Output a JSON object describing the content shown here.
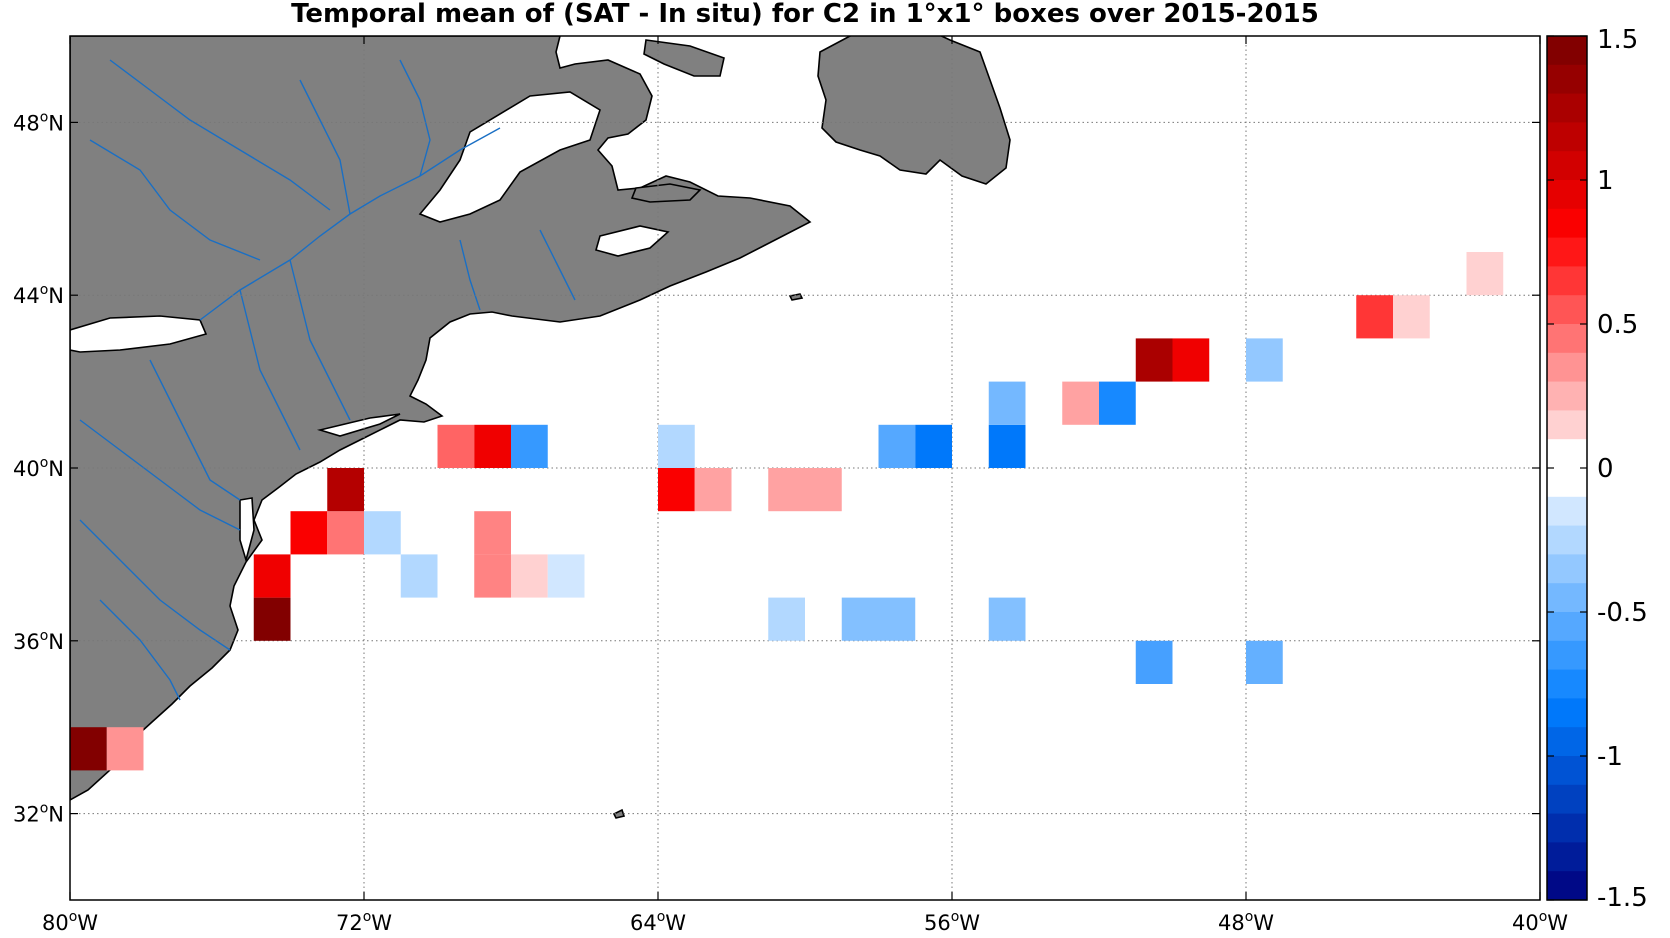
{
  "title": "Temporal mean of (SAT - In situ) for C2 in 1°x1° boxes over 2015-2015",
  "colors": {
    "land": "#808080",
    "coast": "#000000",
    "rivers": "#1a6fc4",
    "grid": "#777777",
    "frame": "#000000"
  },
  "axes": {
    "lon_range": [
      -80,
      -40
    ],
    "lat_range": [
      30,
      50
    ],
    "x_ticks": [
      {
        "value": -80,
        "num": "80",
        "suffix": "W"
      },
      {
        "value": -72,
        "num": "72",
        "suffix": "W"
      },
      {
        "value": -64,
        "num": "64",
        "suffix": "W"
      },
      {
        "value": -56,
        "num": "56",
        "suffix": "W"
      },
      {
        "value": -48,
        "num": "48",
        "suffix": "W"
      },
      {
        "value": -40,
        "num": "40",
        "suffix": "W"
      }
    ],
    "y_ticks": [
      {
        "value": 48,
        "num": "48",
        "suffix": "N"
      },
      {
        "value": 44,
        "num": "44",
        "suffix": "N"
      },
      {
        "value": 40,
        "num": "40",
        "suffix": "N"
      },
      {
        "value": 36,
        "num": "36",
        "suffix": "N"
      },
      {
        "value": 32,
        "num": "32",
        "suffix": "N"
      }
    ],
    "degree_symbol": "o",
    "grid": true
  },
  "chart_data": {
    "type": "heatmap",
    "cell_size_deg": 1,
    "cells": [
      {
        "lon": -79.5,
        "lat": 33.5,
        "value": 1.45
      },
      {
        "lon": -78.5,
        "lat": 33.5,
        "value": 0.35
      },
      {
        "lon": -74.5,
        "lat": 36.5,
        "value": 1.45
      },
      {
        "lon": -74.5,
        "lat": 37.5,
        "value": 0.9
      },
      {
        "lon": -73.5,
        "lat": 38.5,
        "value": 0.85
      },
      {
        "lon": -72.5,
        "lat": 38.5,
        "value": 0.45
      },
      {
        "lon": -72.5,
        "lat": 39.5,
        "value": 1.2
      },
      {
        "lon": -71.5,
        "lat": 38.5,
        "value": -0.25
      },
      {
        "lon": -70.5,
        "lat": 37.5,
        "value": -0.25
      },
      {
        "lon": -69.5,
        "lat": 40.5,
        "value": 0.5
      },
      {
        "lon": -68.5,
        "lat": 40.5,
        "value": 0.9
      },
      {
        "lon": -67.5,
        "lat": 40.5,
        "value": -0.65
      },
      {
        "lon": -68.5,
        "lat": 38.5,
        "value": 0.4
      },
      {
        "lon": -68.5,
        "lat": 37.5,
        "value": 0.4
      },
      {
        "lon": -67.5,
        "lat": 37.5,
        "value": 0.15
      },
      {
        "lon": -66.5,
        "lat": 37.5,
        "value": -0.15
      },
      {
        "lon": -63.5,
        "lat": 40.5,
        "value": -0.25
      },
      {
        "lon": -63.5,
        "lat": 39.5,
        "value": 0.85
      },
      {
        "lon": -62.5,
        "lat": 39.5,
        "value": 0.3
      },
      {
        "lon": -60.5,
        "lat": 39.5,
        "value": 0.3
      },
      {
        "lon": -59.5,
        "lat": 39.5,
        "value": 0.3
      },
      {
        "lon": -60.5,
        "lat": 36.5,
        "value": -0.25
      },
      {
        "lon": -58.5,
        "lat": 36.5,
        "value": -0.4
      },
      {
        "lon": -57.5,
        "lat": 36.5,
        "value": -0.4
      },
      {
        "lon": -57.5,
        "lat": 40.5,
        "value": -0.55
      },
      {
        "lon": -56.5,
        "lat": 40.5,
        "value": -0.85
      },
      {
        "lon": -54.5,
        "lat": 40.5,
        "value": -0.85
      },
      {
        "lon": -54.5,
        "lat": 41.5,
        "value": -0.45
      },
      {
        "lon": -54.5,
        "lat": 36.5,
        "value": -0.4
      },
      {
        "lon": -52.5,
        "lat": 41.5,
        "value": 0.3
      },
      {
        "lon": -51.5,
        "lat": 41.5,
        "value": -0.75
      },
      {
        "lon": -50.5,
        "lat": 42.5,
        "value": 1.25
      },
      {
        "lon": -49.5,
        "lat": 42.5,
        "value": 0.9
      },
      {
        "lon": -50.5,
        "lat": 35.5,
        "value": -0.6
      },
      {
        "lon": -47.5,
        "lat": 42.5,
        "value": -0.35
      },
      {
        "lon": -47.5,
        "lat": 35.5,
        "value": -0.5
      },
      {
        "lon": -44.5,
        "lat": 43.5,
        "value": 0.65
      },
      {
        "lon": -43.5,
        "lat": 43.5,
        "value": 0.15
      },
      {
        "lon": -41.5,
        "lat": 44.5,
        "value": 0.15
      }
    ],
    "colorbar": {
      "range": [
        -1.5,
        1.5
      ],
      "step": 0.1,
      "ticks": [
        "1.5",
        "1",
        "0.5",
        "0",
        "-0.5",
        "-1",
        "-1.5"
      ],
      "tick_values": [
        1.5,
        1,
        0.5,
        0,
        -0.5,
        -1,
        -1.5
      ]
    }
  }
}
